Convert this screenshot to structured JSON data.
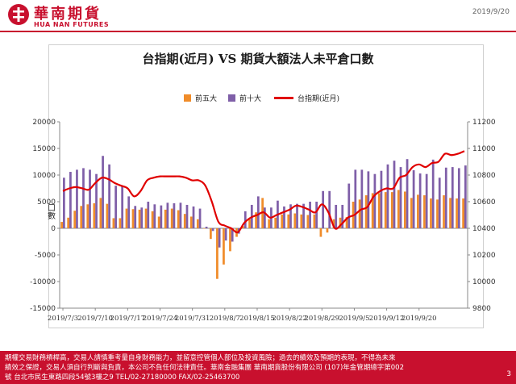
{
  "header": {
    "company_name": "華南期貨",
    "company_name_en": "HUA NAN FUTURES",
    "date": "2019/9/20"
  },
  "chart_data": {
    "type": "bar",
    "title": "台指期(近月) VS 期貨大額法人未平倉口數",
    "ylabel": "口數",
    "ylim": [
      -15000,
      20000
    ],
    "y2lim": [
      9800,
      11200
    ],
    "yticks": [
      "20000",
      "15000",
      "10000",
      "5000",
      "0",
      "-5000",
      "-10000",
      "-15000"
    ],
    "y2ticks": [
      "11200",
      "11000",
      "10800",
      "10600",
      "10400",
      "10200",
      "10000",
      "9800"
    ],
    "xtick_labels": [
      "2019/7/3",
      "2019/7/10",
      "2019/7/17",
      "2019/7/24",
      "2019/7/31",
      "2019/8/7",
      "2019/8/15",
      "2019/8/22",
      "2019/8/29",
      "2019/9/5",
      "2019/9/12",
      "2019/9/20"
    ],
    "xtick_indices": [
      0,
      5,
      10,
      15,
      20,
      25,
      30,
      35,
      40,
      45,
      50,
      55
    ],
    "legend": [
      "前五大",
      "前十大",
      "台指期(近月)"
    ],
    "colors": {
      "top5": "#f08c2a",
      "top10": "#7f5fa8",
      "index": "#e00000"
    },
    "series": [
      {
        "name": "前五大",
        "values": [
          1200,
          2000,
          3300,
          4200,
          4500,
          4700,
          5700,
          4600,
          1900,
          1900,
          3700,
          3600,
          3500,
          3700,
          3200,
          2200,
          3500,
          3700,
          3400,
          2700,
          2200,
          1700,
          0,
          -2000,
          -9500,
          -6800,
          -4300,
          -1600,
          400,
          1700,
          3000,
          5700,
          1700,
          2000,
          2600,
          2600,
          2800,
          2600,
          2500,
          2600,
          -1600,
          -800,
          1700,
          2000,
          2100,
          5000,
          5400,
          6200,
          6600,
          6600,
          6800,
          6800,
          7200,
          6900,
          5700,
          6300,
          6200,
          5600,
          5400,
          6200,
          5700,
          5600,
          5600
        ]
      },
      {
        "name": "前十大",
        "values": [
          9500,
          10600,
          11000,
          11300,
          11000,
          10200,
          13600,
          12000,
          8000,
          8000,
          6000,
          4200,
          3900,
          5000,
          4500,
          4300,
          4800,
          4700,
          4800,
          4400,
          4100,
          3700,
          300,
          -500,
          -3600,
          -2300,
          -2500,
          -1000,
          3200,
          4400,
          6000,
          3900,
          3900,
          5200,
          4100,
          4500,
          4600,
          4600,
          5000,
          5000,
          7000,
          7000,
          4400,
          4400,
          8400,
          11000,
          11000,
          10700,
          10200,
          10800,
          12000,
          12700,
          11500,
          13000,
          10900,
          10300,
          10200,
          12900,
          9500,
          11400,
          11500,
          11300,
          11800
        ]
      },
      {
        "name": "台指期(近月)",
        "values": [
          10680,
          10700,
          10710,
          10700,
          10690,
          10740,
          10780,
          10770,
          10740,
          10720,
          10700,
          10640,
          10680,
          10760,
          10780,
          10790,
          10790,
          10790,
          10790,
          10780,
          10760,
          10760,
          10720,
          10600,
          10450,
          10420,
          10400,
          10370,
          10440,
          10480,
          10500,
          10520,
          10480,
          10500,
          10520,
          10540,
          10570,
          10560,
          10540,
          10520,
          10580,
          10520,
          10400,
          10430,
          10480,
          10500,
          10540,
          10560,
          10640,
          10680,
          10700,
          10700,
          10780,
          10800,
          10860,
          10880,
          10860,
          10890,
          10900,
          10960,
          10950,
          10960,
          10980
        ]
      }
    ]
  },
  "footer": {
    "line1": "期權交易財務槓桿高，交易人請慎重考量自身財務能力，並留意控管個人部位及投資風險；過去的績效及預期的表現，不得為未來",
    "line2": "績效之保證，交易人須自行判斷與負責，本公司不負任何法律責任。華南金融集團 華南期貨股份有限公司 (107)年金管期總字第002",
    "line3": "號  台北市民生東路四段54號3樓之9  TEL/02-27180000  FAX/02-25463700",
    "page": "3"
  }
}
